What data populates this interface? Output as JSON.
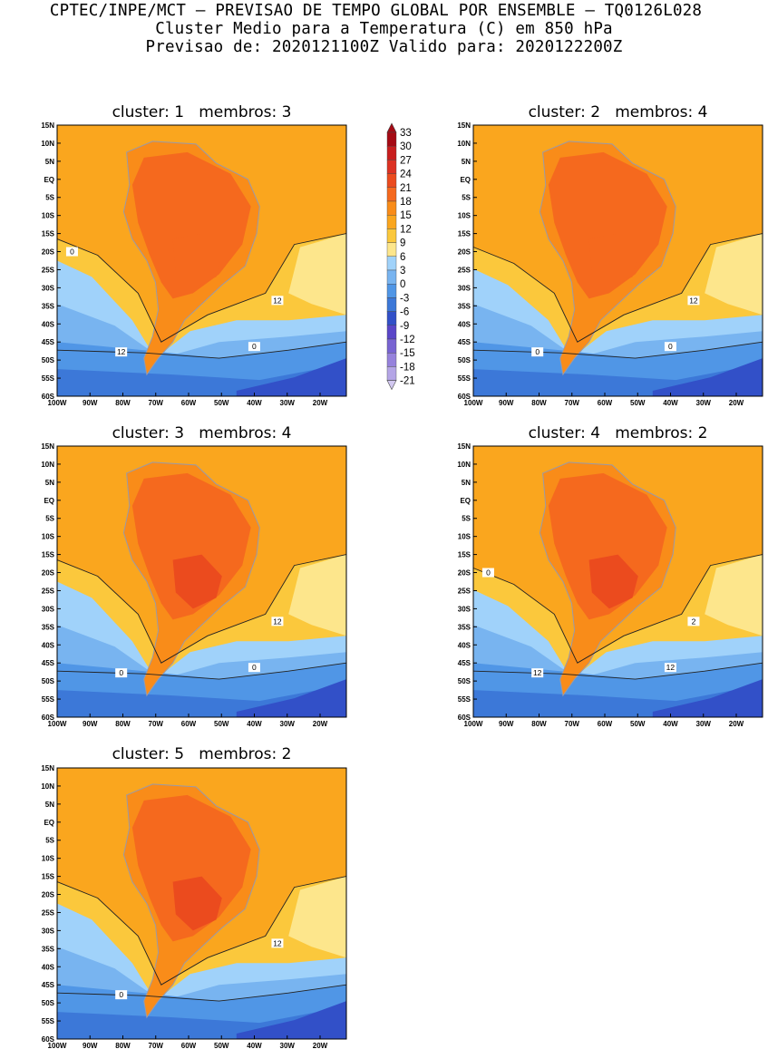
{
  "header": {
    "line1": "CPTEC/INPE/MCT — PREVISAO DE TEMPO GLOBAL POR ENSEMBLE — TQ0126L028",
    "line2": "Cluster Medio para a Temperatura (C) em 850 hPa",
    "line3": "Previsao de: 2020121100Z   Valido para: 2020122200Z"
  },
  "chart_data": {
    "type": "heatmap",
    "variable": "Temperatura (C) em 850 hPa",
    "lat_ticks": [
      "15N",
      "10N",
      "5N",
      "EQ",
      "5S",
      "10S",
      "15S",
      "20S",
      "25S",
      "30S",
      "35S",
      "40S",
      "45S",
      "50S",
      "55S",
      "60S"
    ],
    "lon_ticks": [
      "100W",
      "90W",
      "80W",
      "70W",
      "60W",
      "50W",
      "40W",
      "30W",
      "20W"
    ],
    "colorbar": {
      "levels": [
        "33",
        "30",
        "27",
        "24",
        "21",
        "18",
        "15",
        "12",
        "9",
        "6",
        "3",
        "0",
        "-3",
        "-6",
        "-9",
        "-12",
        "-15",
        "-18",
        "-21"
      ],
      "colors": [
        "#a50a14",
        "#c81e1e",
        "#dc3223",
        "#eb4b1e",
        "#f5691e",
        "#f98c19",
        "#faa61e",
        "#fbc83c",
        "#fde68c",
        "#a0d2fa",
        "#78b4f0",
        "#5096e6",
        "#3c78d8",
        "#3250c8",
        "#5a46c8",
        "#7864d2",
        "#9682dc",
        "#b4a5e6",
        "#d2c8f0"
      ]
    },
    "panels": [
      {
        "cluster": "1",
        "membros": "3",
        "isotherms": [
          "12",
          "12",
          "0",
          "0"
        ]
      },
      {
        "cluster": "2",
        "membros": "4",
        "isotherms": [
          "12",
          "0",
          "0"
        ]
      },
      {
        "cluster": "3",
        "membros": "4",
        "isotherms": [
          "12",
          "0",
          "0"
        ]
      },
      {
        "cluster": "4",
        "membros": "2",
        "isotherms": [
          "2",
          "12",
          "12",
          "0"
        ]
      },
      {
        "cluster": "5",
        "membros": "2",
        "isotherms": [
          "12",
          "0"
        ]
      }
    ],
    "panel_title_template": "cluster: {c}   membros: {m}"
  }
}
